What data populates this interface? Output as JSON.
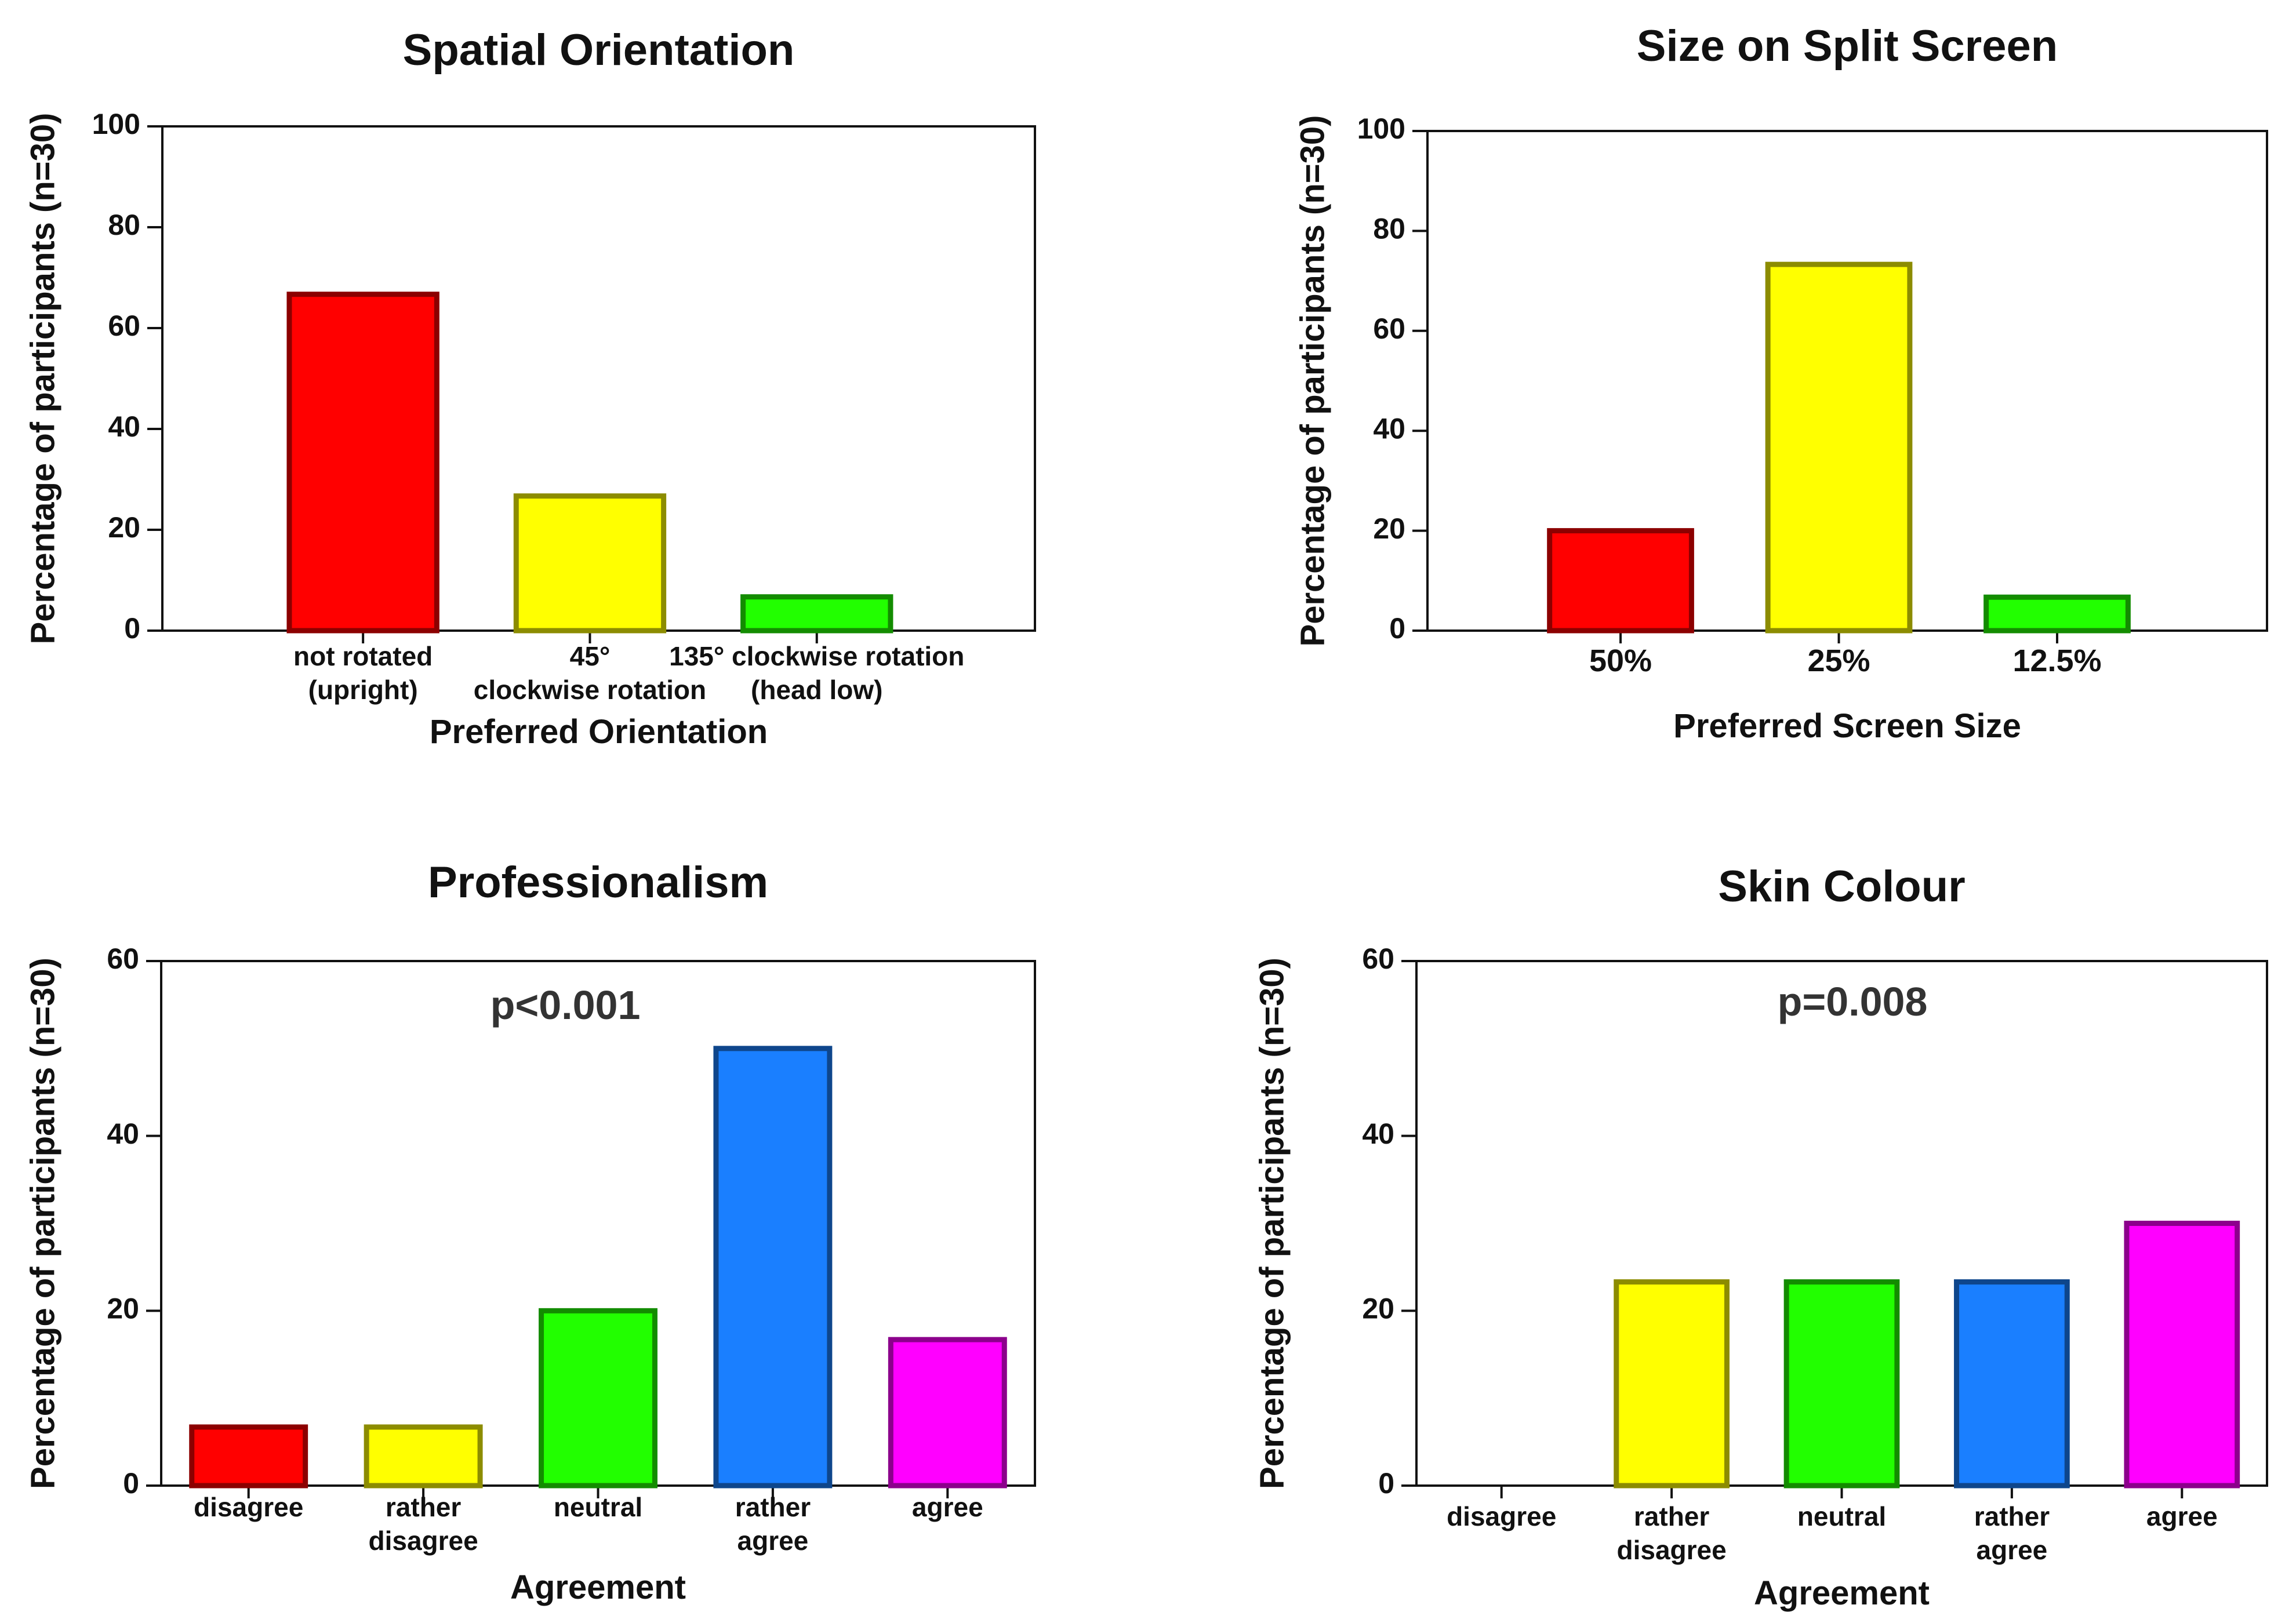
{
  "chart_data": [
    {
      "type": "bar",
      "title": "Spatial Orientation",
      "xlabel": "Preferred Orientation",
      "ylabel": "Percentage of participants (n=30)",
      "ylim": [
        0,
        100
      ],
      "yticks": [
        0,
        20,
        40,
        60,
        80,
        100
      ],
      "categories": [
        [
          "not rotated",
          "(upright)"
        ],
        [
          "45°",
          "clockwise rotation"
        ],
        [
          "135° clockwise rotation",
          "(head low)"
        ]
      ],
      "values": [
        66.7,
        26.7,
        6.7
      ],
      "colors": [
        "#ff0000",
        "#ffff00",
        "#22ff00"
      ],
      "annotation": ""
    },
    {
      "type": "bar",
      "title": "Size on Split Screen",
      "xlabel": "Preferred Screen Size",
      "ylabel": "Percentage of participants (n=30)",
      "ylim": [
        0,
        100
      ],
      "yticks": [
        0,
        20,
        40,
        60,
        80,
        100
      ],
      "categories": [
        [
          "50%"
        ],
        [
          "25%"
        ],
        [
          "12.5%"
        ]
      ],
      "values": [
        20,
        73.3,
        6.7
      ],
      "colors": [
        "#ff0000",
        "#ffff00",
        "#22ff00"
      ],
      "annotation": ""
    },
    {
      "type": "bar",
      "title": "Professionalism",
      "xlabel": "Agreement",
      "ylabel": "Percentage of participants (n=30)",
      "ylim": [
        0,
        60
      ],
      "yticks": [
        0,
        20,
        40,
        60
      ],
      "categories": [
        [
          "disagree"
        ],
        [
          "rather",
          "disagree"
        ],
        [
          "neutral"
        ],
        [
          "rather",
          "agree"
        ],
        [
          "agree"
        ]
      ],
      "values": [
        6.7,
        6.7,
        20,
        50,
        16.7
      ],
      "colors": [
        "#ff0000",
        "#ffff00",
        "#22ff00",
        "#1a7fff",
        "#ff00ff"
      ],
      "annotation": "p<0.001"
    },
    {
      "type": "bar",
      "title": "Skin Colour",
      "xlabel": "Agreement",
      "ylabel": "Percentage of participants (n=30)",
      "ylim": [
        0,
        60
      ],
      "yticks": [
        0,
        20,
        40,
        60
      ],
      "categories": [
        [
          "disagree"
        ],
        [
          "rather",
          "disagree"
        ],
        [
          "neutral"
        ],
        [
          "rather",
          "agree"
        ],
        [
          "agree"
        ]
      ],
      "values": [
        0,
        23.3,
        23.3,
        23.3,
        30
      ],
      "colors": [
        "#ff0000",
        "#ffff00",
        "#22ff00",
        "#1a7fff",
        "#ff00ff"
      ],
      "annotation": "p=0.008"
    }
  ]
}
